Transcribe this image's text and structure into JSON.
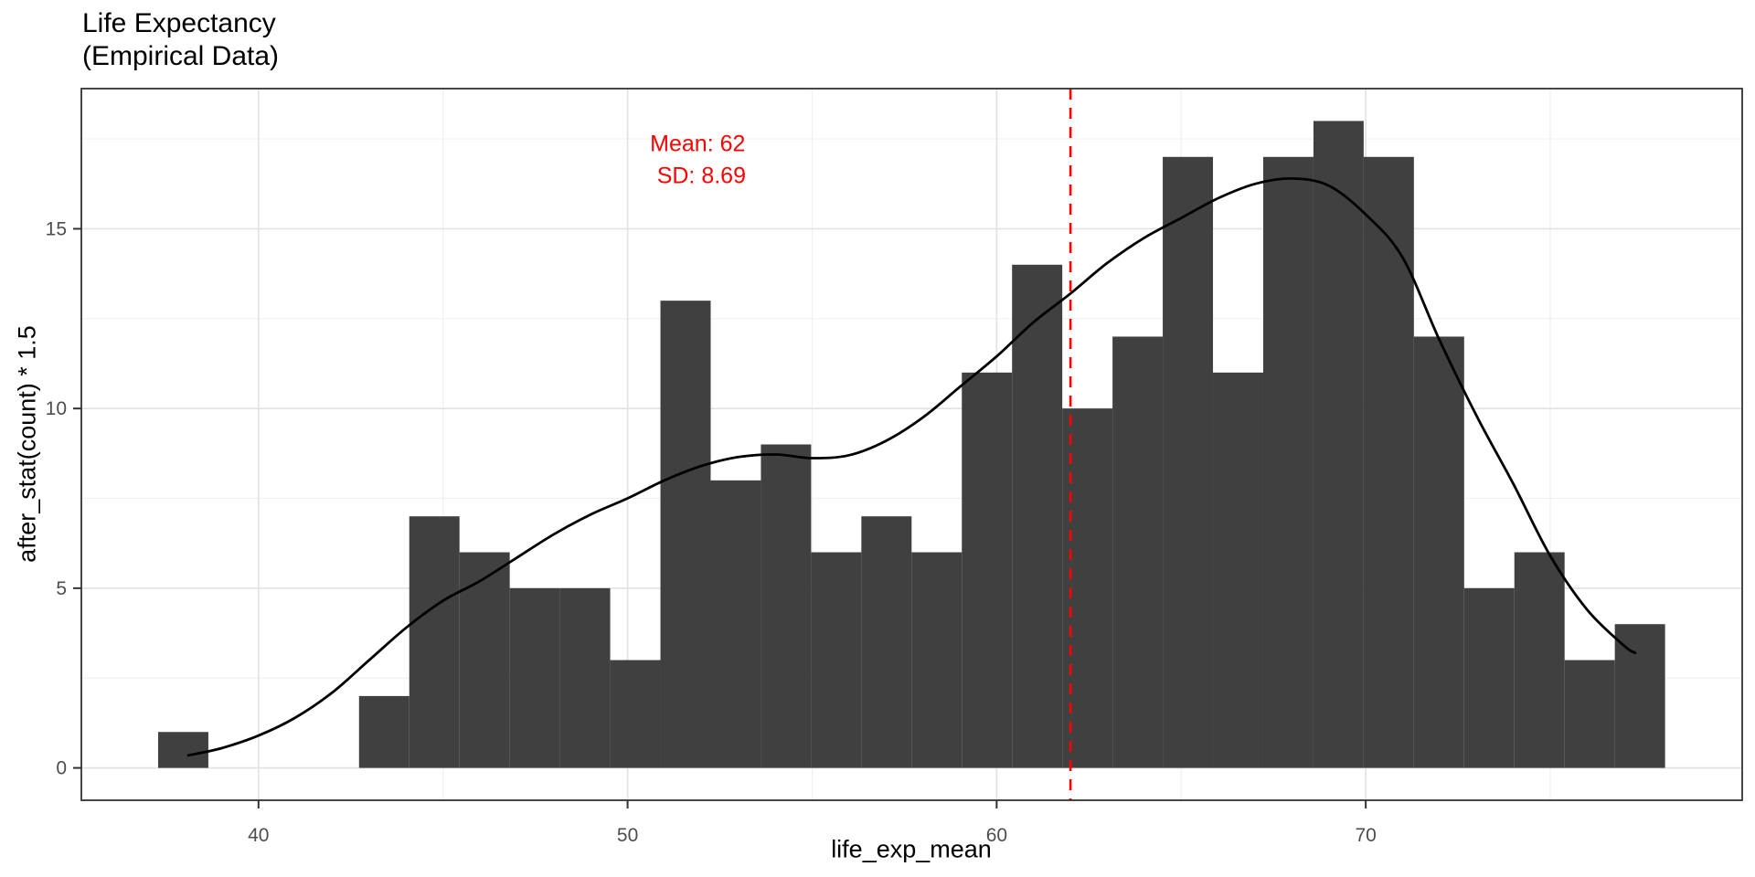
{
  "title": {
    "line1": "Life Expectancy",
    "line2": "(Empirical Data)"
  },
  "annotations": {
    "mean_label": "Mean: 62",
    "sd_label": "SD: 8.69"
  },
  "colors": {
    "bar_fill": "#404040",
    "density_curve": "#000000",
    "mean_line": "#FF0000",
    "annotation_text": "#FF0000",
    "grid_major": "#E3E3E3",
    "grid_minor": "#F0F0F0",
    "panel_border": "#333333",
    "tick_mark": "#333333",
    "tick_label": "#4D4D4D",
    "axis_title": "#000000",
    "background": "#FFFFFF"
  },
  "chart_data": {
    "type": "bar",
    "subtype": "histogram_with_density",
    "title": "Life Expectancy (Empirical Data)",
    "xlabel": "life_exp_mean",
    "ylabel": "after_stat(count) * 1.5",
    "xlim": [
      35.2,
      80.2
    ],
    "ylim": [
      -0.9,
      18.9
    ],
    "x_major_ticks": [
      40,
      50,
      60,
      70
    ],
    "x_minor_gridlines": [
      45,
      55,
      65,
      75
    ],
    "y_major_ticks": [
      0,
      5,
      10,
      15
    ],
    "y_minor_gridlines": [
      2.5,
      7.5,
      12.5,
      17.5
    ],
    "grid": "on",
    "bin_start": 37.28,
    "bin_width": 1.361,
    "counts": [
      1,
      0,
      0,
      0,
      2,
      7,
      6,
      5,
      5,
      3,
      13,
      8,
      9,
      6,
      7,
      6,
      11,
      14,
      10,
      12,
      17,
      11,
      17,
      18,
      17,
      12,
      5,
      6,
      3,
      4
    ],
    "mean": 62,
    "sd": 8.69,
    "mean_vline_x": 62,
    "annotation_positions": {
      "mean_xy": [
        51.9,
        17.35
      ],
      "sd_xy": [
        52.0,
        16.45
      ]
    },
    "density_curve": [
      [
        38.1,
        0.35
      ],
      [
        39,
        0.55
      ],
      [
        40,
        0.9
      ],
      [
        41,
        1.4
      ],
      [
        42,
        2.1
      ],
      [
        43,
        3.0
      ],
      [
        44,
        3.9
      ],
      [
        45,
        4.65
      ],
      [
        46,
        5.2
      ],
      [
        47,
        5.85
      ],
      [
        48,
        6.5
      ],
      [
        49,
        7.05
      ],
      [
        50,
        7.5
      ],
      [
        51,
        8.0
      ],
      [
        52,
        8.4
      ],
      [
        53,
        8.65
      ],
      [
        54,
        8.72
      ],
      [
        55,
        8.62
      ],
      [
        56,
        8.7
      ],
      [
        57,
        9.1
      ],
      [
        58,
        9.75
      ],
      [
        59,
        10.6
      ],
      [
        60,
        11.45
      ],
      [
        61,
        12.4
      ],
      [
        62,
        13.2
      ],
      [
        63,
        14.05
      ],
      [
        64,
        14.75
      ],
      [
        65,
        15.3
      ],
      [
        66,
        15.85
      ],
      [
        67,
        16.25
      ],
      [
        68,
        16.4
      ],
      [
        69,
        16.2
      ],
      [
        70,
        15.4
      ],
      [
        71,
        14.2
      ],
      [
        72,
        11.9
      ],
      [
        73,
        9.8
      ],
      [
        74,
        7.9
      ],
      [
        75,
        5.9
      ],
      [
        76,
        4.4
      ],
      [
        77,
        3.4
      ],
      [
        77.3,
        3.2
      ]
    ]
  }
}
